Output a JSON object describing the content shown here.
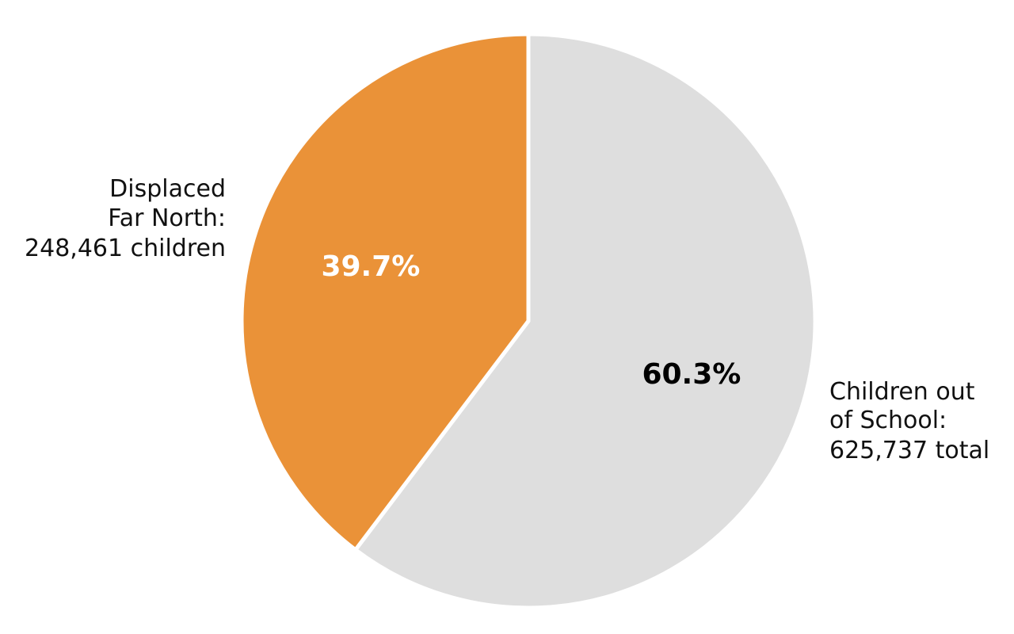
{
  "chart_data": {
    "type": "pie",
    "title": "",
    "start": "top",
    "direction": "clockwise",
    "slices": [
      {
        "value_pct": 60.3,
        "value_label": "60.3%",
        "label_lines": [
          "Children out",
          "of School:",
          "625,737 total"
        ],
        "color": "#dedede",
        "value_label_color": "#000000"
      },
      {
        "value_pct": 39.7,
        "value_label": "39.7%",
        "label_lines": [
          "Displaced",
          "Far North:",
          "248,461 children"
        ],
        "color": "#ea9238",
        "value_label_color": "#ffffff"
      }
    ]
  }
}
